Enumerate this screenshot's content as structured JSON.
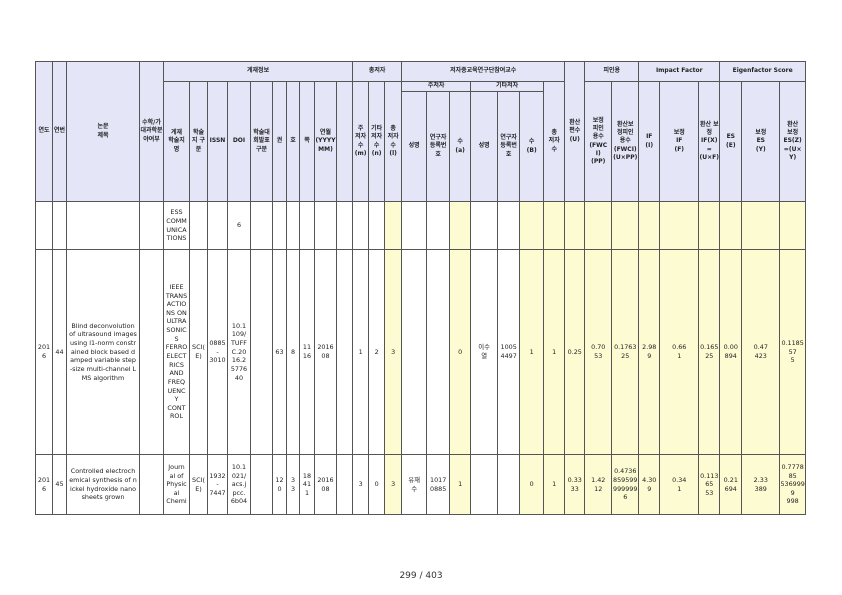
{
  "headers": {
    "year": "연도",
    "no": "연번",
    "title": "논문\n제목",
    "category": "수학/가대과학분야여부",
    "group_pub": "게재정보",
    "group_total": "총저자",
    "group_participants": "저자중교육연구단참여교수",
    "sub_main": "주저자",
    "sub_other": "기타저자",
    "journal": "게재\n학술지\n명",
    "journal_type": "학술\n지 구\n분",
    "issn": "ISSN",
    "doi": "DOI",
    "conf": "학술대\n회발표\n구분",
    "vol": "권",
    "issue": "호",
    "page": "쪽",
    "date": "연월\n(YYYY\nMM)",
    "main_authors": "주\n저자\n수\n(m)",
    "other_authors": "기타\n저자\n수\n(n)",
    "total_authors": "총\n저자\n수\n(l)",
    "m_name": "성명",
    "m_reg": "연구자\n등록번\n호",
    "m_count": "수\n(a)",
    "o_name": "성명",
    "o_reg": "연구자\n등록번\n호",
    "o_count": "수\n(B)",
    "part_total": "총\n저자\n수",
    "conv": "환산\n편수\n(U)",
    "group_cite": "피인용",
    "fwci": "보정\n피인\n용수\n(FWC\nI)\n(PP)",
    "conv_fwci": "환산보\n정피인\n용수\n(FWCI)\n(U×PP)",
    "group_if": "Impact Factor",
    "if": "IF\n(I)",
    "corr_if": "보정\nIF\n(F)",
    "conv_if": "환산 보정\nIF(X)\n=\n(U×F)",
    "group_es": "Eigenfactor Score",
    "es": "ES\n(E)",
    "corr_es": "보정\nES\n(Y)",
    "conv_es": "환산\n보정\nES(Z)\n=(U×Y)"
  },
  "rows": [
    {
      "year": "",
      "no": "",
      "title": "",
      "category": "",
      "journal": "ESS\nCOMM\nUNICA\nTIONS",
      "journal_type": "",
      "issn": "",
      "doi": "6",
      "conf": "",
      "vol": "",
      "issue": "",
      "page": "",
      "date": "",
      "m": "",
      "n": "",
      "l": "",
      "m_name": "",
      "m_reg": "",
      "a": "",
      "o_name": "",
      "o_reg": "",
      "b": "",
      "pt": "",
      "u": "",
      "fwci": "",
      "ufwci": "",
      "if": "",
      "f": "",
      "x": "",
      "es": "",
      "y": "",
      "z": ""
    },
    {
      "year": "201\n6",
      "no": "44",
      "title": "Blind deconvolution of ultrasound images using l1-norm constrained block based damped variable step-size multi-channel LMS algorithm",
      "category": "",
      "journal": "IEEE\nTRANS\nACTIO\nNS ON\nULTRA\nSONIC\nS\nFERRO\nELECT\nRICS\nAND\nFREQ\nUENC\nY\nCONT\nROL",
      "journal_type": "SCI(\nE)",
      "issn": "0885\n-\n3010",
      "doi": "10.1\n109/\nTUFF\nC.20\n16.2\n5776\n40",
      "conf": "",
      "vol": "63",
      "issue": "8",
      "page": "11\n16",
      "date": "2016\n08",
      "m": "1",
      "n": "2",
      "l": "3",
      "m_name": "",
      "m_reg": "",
      "a": "0",
      "o_name": "이수\n열",
      "o_reg": "1005\n4497",
      "b": "1",
      "pt": "1",
      "u": "0.25",
      "fwci": "0.70\n53",
      "ufwci": "0.1763\n25",
      "if": "2.98\n9",
      "f": "0.66\n1",
      "x": "0.16525",
      "es": "0.00\n894",
      "y": "0.47\n423",
      "z": "0.118557\n5"
    },
    {
      "year": "201\n6",
      "no": "45",
      "title": "Controlled electrochemical synthesis of nickel hydroxide nanosheets grown",
      "category": "",
      "journal": "Journ\nal of\nPhysic\nal\nChemi",
      "journal_type": "SCI(\nE)",
      "issn": "1932\n-\n7447",
      "doi": "10.1\n021/\nacs.j\npcc.\n6b04",
      "conf": "",
      "vol": "12\n0",
      "issue": "3\n3",
      "page": "18\n41\n1",
      "date": "2016\n08",
      "m": "3",
      "n": "0",
      "l": "3",
      "m_name": "유재\n수",
      "m_reg": "1017\n0885",
      "a": "1",
      "o_name": "",
      "o_reg": "",
      "b": "0",
      "pt": "1",
      "u": "0.33\n33",
      "fwci": "1.42\n12",
      "ufwci": "0.4736\n859599\n999999\n6",
      "if": "4.30\n9",
      "f": "0.34\n1",
      "x": "0.11365\n53",
      "es": "0.21\n694",
      "y": "2.33\n389",
      "z": "0.777885\n5369999\n998"
    }
  ],
  "footer": "299 / 403"
}
